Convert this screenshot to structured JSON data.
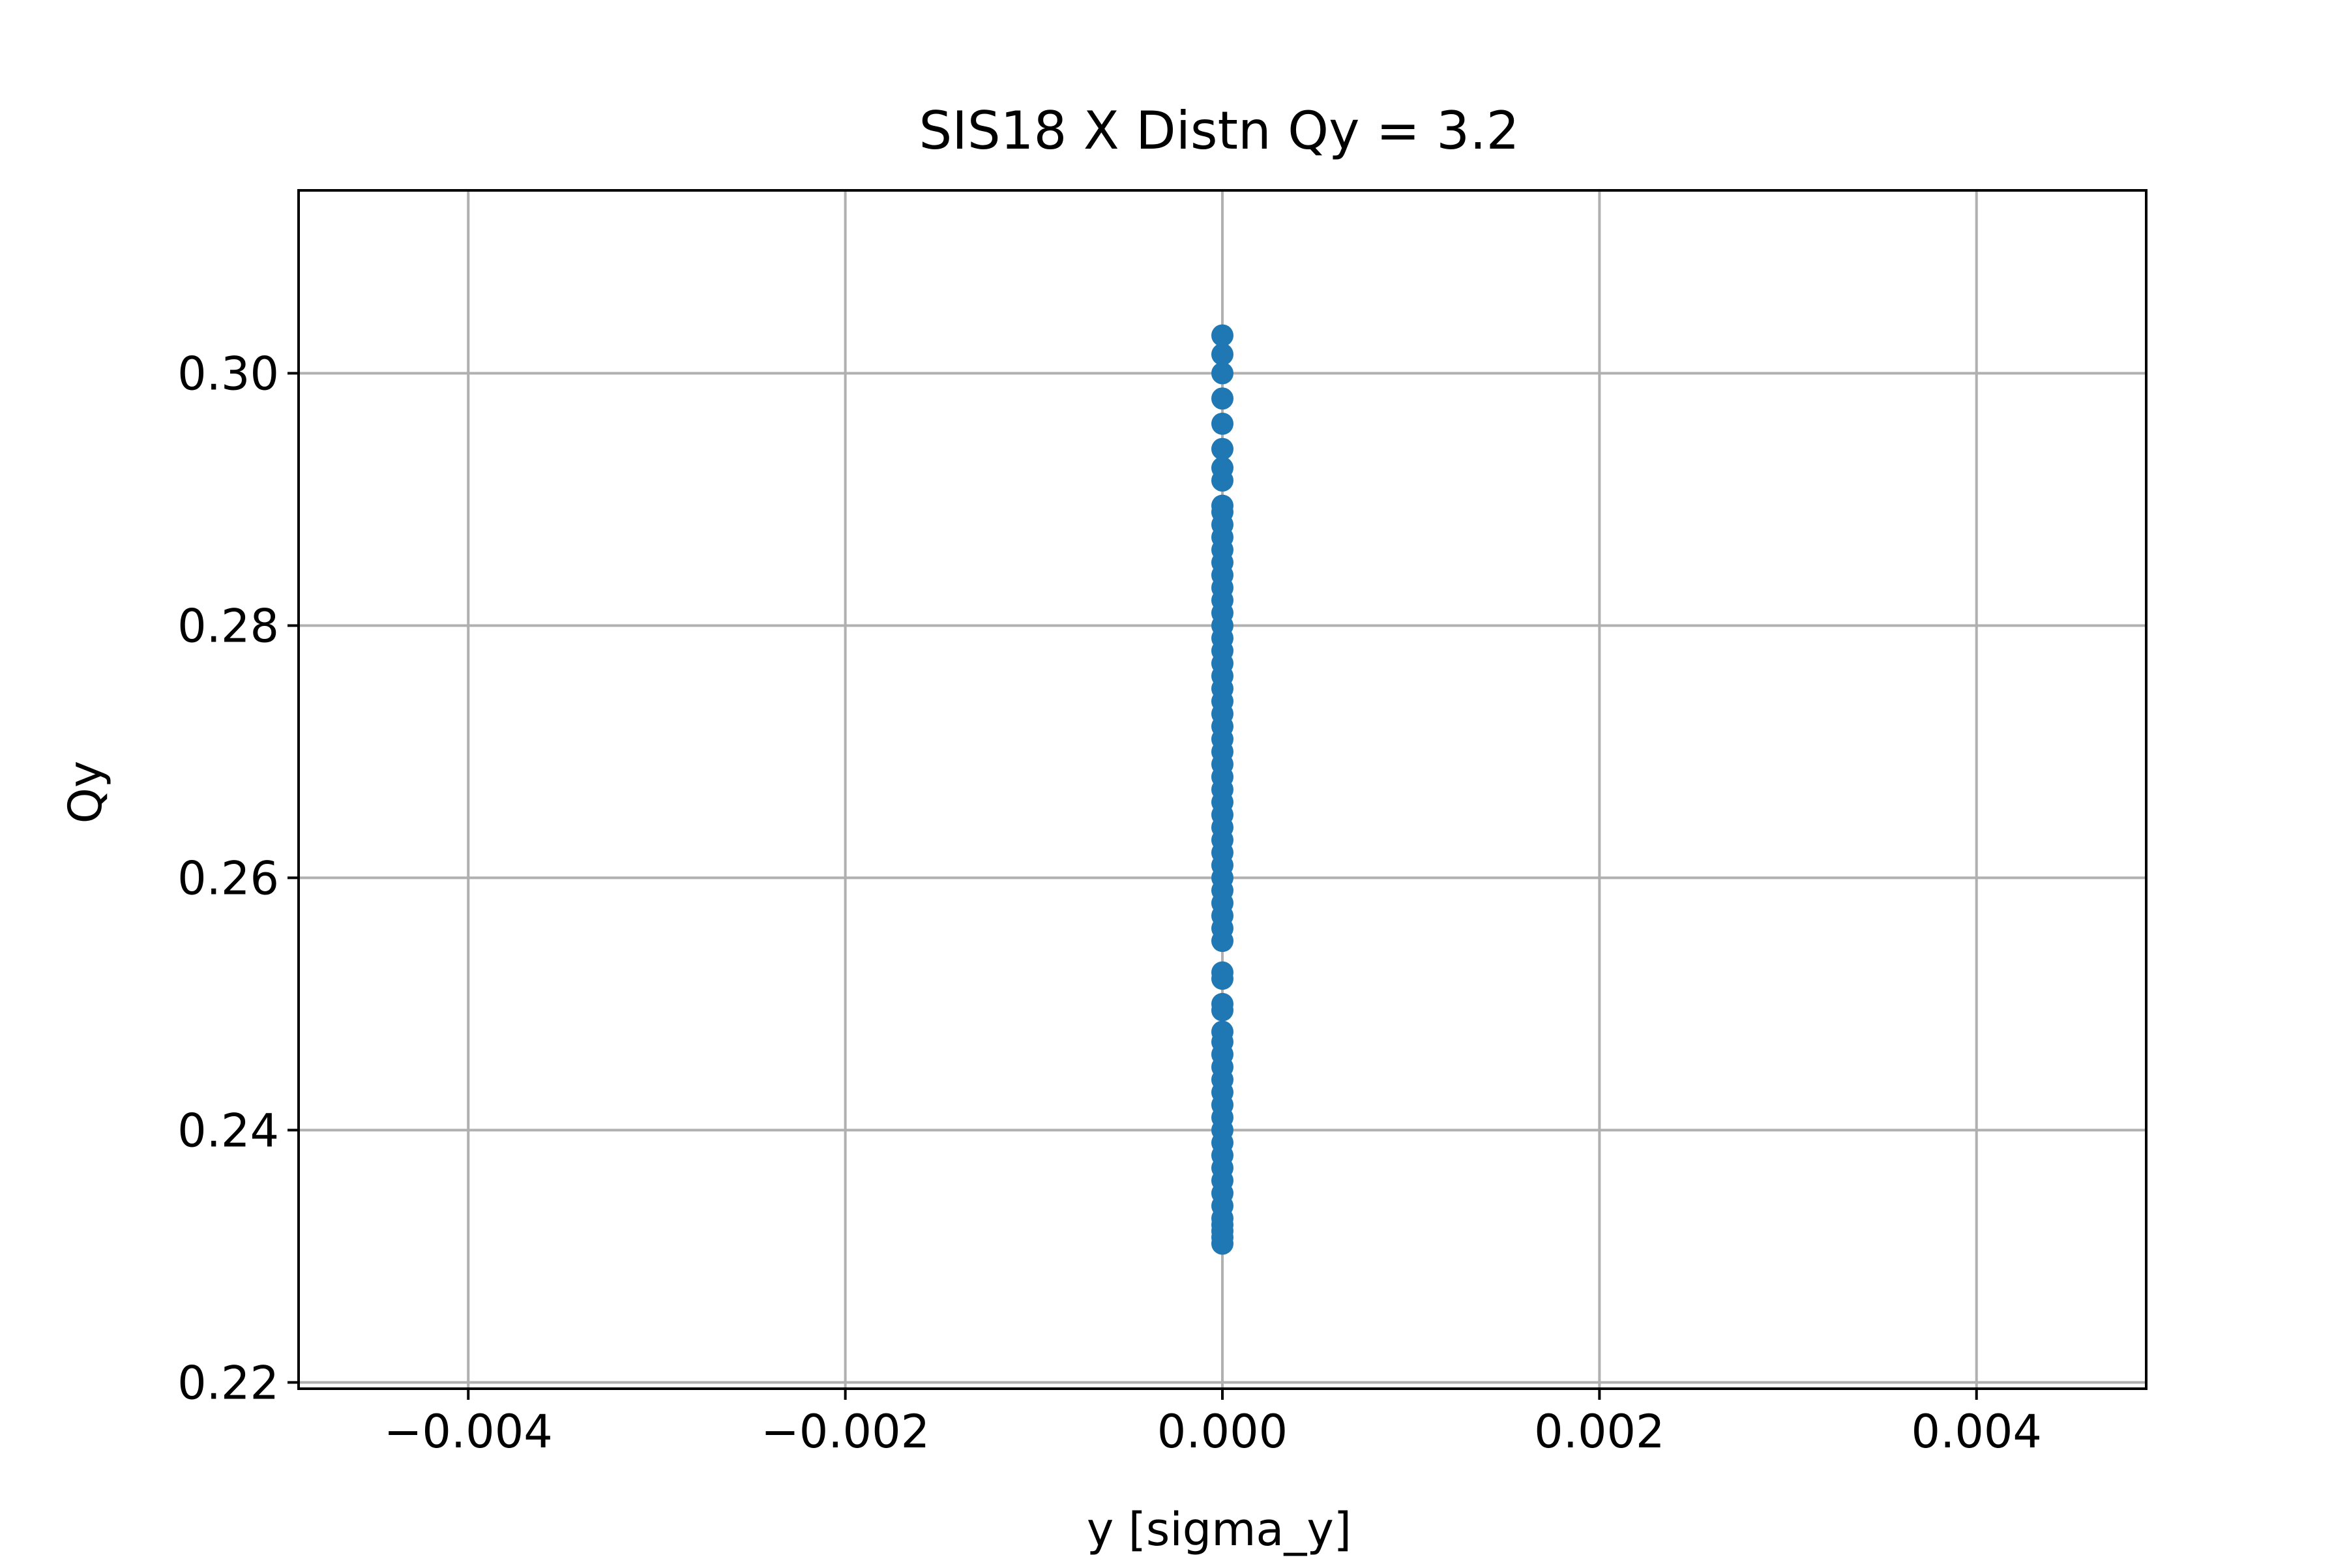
{
  "chart_data": {
    "type": "scatter",
    "title": "SIS18 X Distn Qy = 3.2",
    "xlabel": "y [sigma_y]",
    "ylabel": "Qy",
    "xlim": [
      -0.0049,
      0.0049
    ],
    "ylim": [
      0.2195,
      0.3145
    ],
    "xticks": [
      -0.004,
      -0.002,
      0.0,
      0.002,
      0.004
    ],
    "xtick_labels": [
      "−0.004",
      "−0.002",
      "0.000",
      "0.002",
      "0.004"
    ],
    "yticks": [
      0.22,
      0.24,
      0.26,
      0.28,
      0.3
    ],
    "ytick_labels": [
      "0.22",
      "0.24",
      "0.26",
      "0.28",
      "0.30"
    ],
    "grid": true,
    "marker_color": "#1f77b4",
    "series": [
      {
        "x": [
          0,
          0,
          0,
          0,
          0,
          0,
          0,
          0,
          0,
          0,
          0,
          0,
          0,
          0,
          0,
          0,
          0,
          0,
          0,
          0,
          0,
          0,
          0,
          0,
          0,
          0,
          0,
          0,
          0,
          0,
          0,
          0,
          0,
          0,
          0,
          0,
          0,
          0,
          0,
          0,
          0,
          0,
          0,
          0,
          0,
          0,
          0,
          0,
          0,
          0,
          0,
          0,
          0,
          0,
          0,
          0,
          0,
          0,
          0,
          0,
          0,
          0,
          0,
          0,
          0,
          0,
          0,
          0
        ],
        "y": [
          0.231,
          0.2315,
          0.232,
          0.2325,
          0.233,
          0.234,
          0.235,
          0.236,
          0.237,
          0.238,
          0.239,
          0.24,
          0.241,
          0.242,
          0.243,
          0.244,
          0.245,
          0.246,
          0.247,
          0.2478,
          0.2495,
          0.25,
          0.252,
          0.2525,
          0.255,
          0.256,
          0.257,
          0.258,
          0.259,
          0.26,
          0.261,
          0.262,
          0.263,
          0.264,
          0.265,
          0.266,
          0.267,
          0.268,
          0.269,
          0.27,
          0.271,
          0.272,
          0.273,
          0.274,
          0.275,
          0.276,
          0.277,
          0.278,
          0.279,
          0.28,
          0.281,
          0.282,
          0.283,
          0.284,
          0.285,
          0.286,
          0.287,
          0.288,
          0.289,
          0.2895,
          0.2915,
          0.2925,
          0.294,
          0.296,
          0.298,
          0.3,
          0.3015,
          0.303
        ]
      }
    ]
  }
}
